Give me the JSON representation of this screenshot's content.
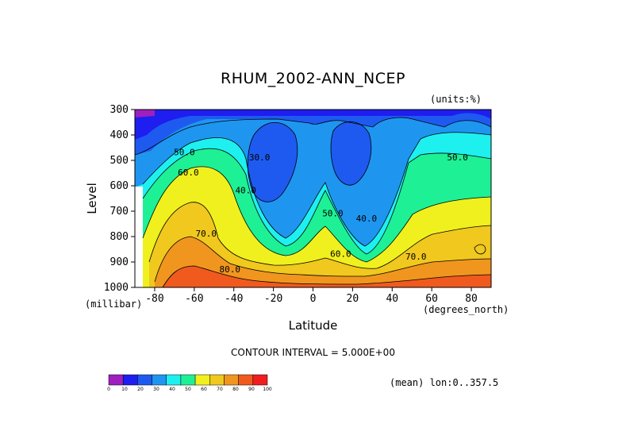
{
  "chart_data": {
    "type": "contour",
    "title": "RHUM_2002-ANN_NCEP",
    "units": "(units:%)",
    "xlabel": "Latitude",
    "ylabel": "Level",
    "x_unit": "(degrees_north)",
    "y_unit": "(millibar)",
    "xlim": [
      -90,
      90
    ],
    "ylim": [
      1000,
      300
    ],
    "x_ticks": [
      -80,
      -60,
      -40,
      -20,
      0,
      20,
      40,
      60,
      80
    ],
    "y_ticks": [
      300,
      400,
      500,
      600,
      700,
      800,
      900,
      1000
    ],
    "contour_interval": "CONTOUR INTERVAL = 5.000E+00",
    "mean_note": "(mean) lon:0..357.5",
    "contour_labels": [
      {
        "text": "30.0",
        "lat": -27,
        "lev": 500
      },
      {
        "text": "40.0",
        "lat": -34,
        "lev": 630
      },
      {
        "text": "50.0",
        "lat": -65,
        "lev": 480
      },
      {
        "text": "50.0",
        "lat": 10,
        "lev": 720
      },
      {
        "text": "50.0",
        "lat": 73,
        "lev": 500
      },
      {
        "text": "40.0",
        "lat": 27,
        "lev": 740
      },
      {
        "text": "60.0",
        "lat": -63,
        "lev": 560
      },
      {
        "text": "60.0",
        "lat": 14,
        "lev": 880
      },
      {
        "text": "70.0",
        "lat": -54,
        "lev": 800
      },
      {
        "text": "70.0",
        "lat": 52,
        "lev": 890
      },
      {
        "text": "80.0",
        "lat": -42,
        "lev": 940
      }
    ],
    "colorbar": {
      "levels": [
        "0",
        "10",
        "20",
        "30",
        "40",
        "50",
        "60",
        "70",
        "80",
        "90",
        "100"
      ],
      "colors": [
        "#9f1fbf",
        "#1e1ef0",
        "#1e5af0",
        "#1e96f0",
        "#1ef0f0",
        "#1ef096",
        "#f0f01e",
        "#f0c81e",
        "#f0961e",
        "#f05a1e",
        "#f01e1e"
      ]
    }
  }
}
